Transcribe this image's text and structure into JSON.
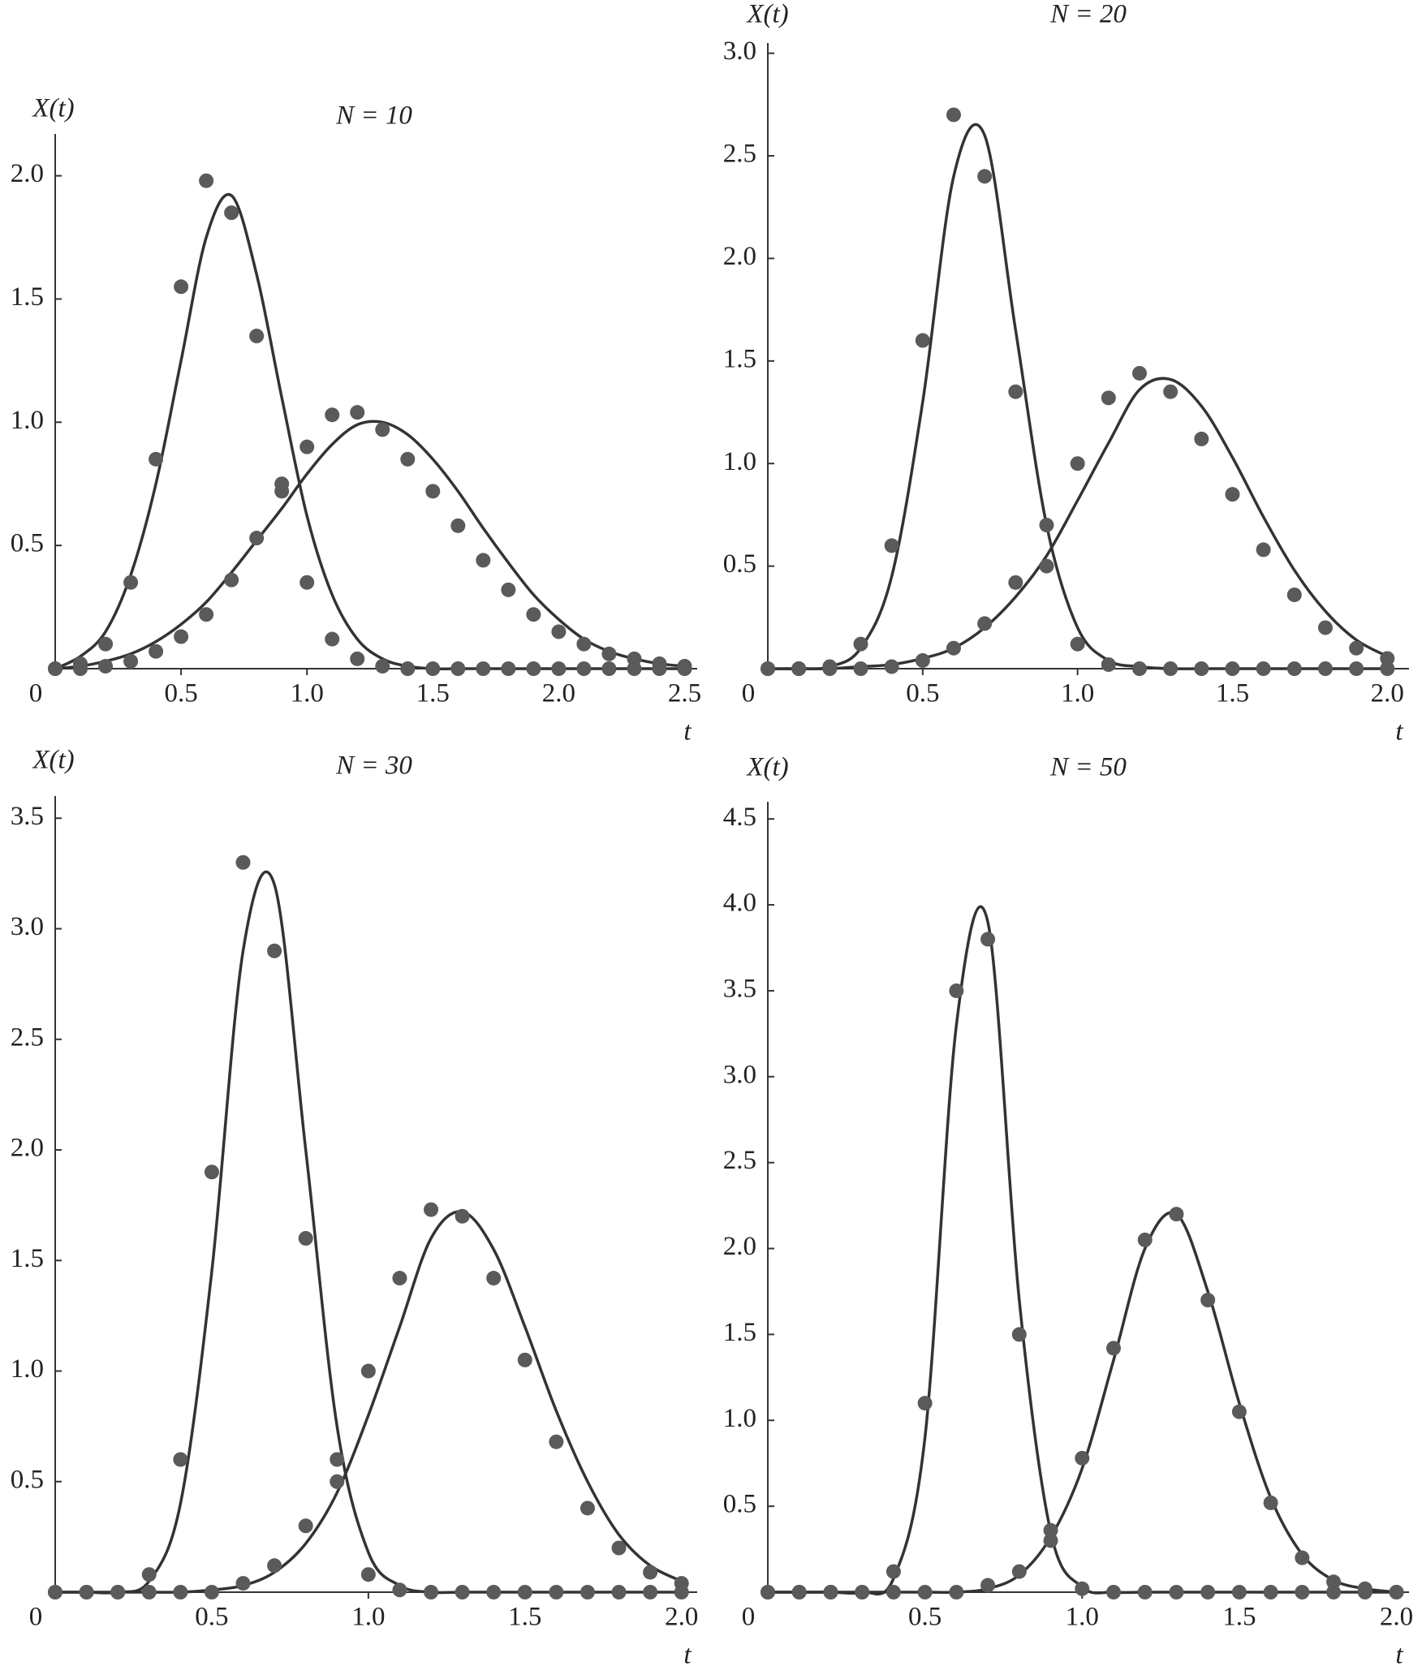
{
  "chart_data": [
    {
      "type": "line",
      "title": "N = 10",
      "xlabel": "t",
      "ylabel": "X(t)",
      "x": [
        0,
        0.1,
        0.2,
        0.3,
        0.4,
        0.5,
        0.6,
        0.7,
        0.8,
        0.9,
        1,
        1.1,
        1.2,
        1.3,
        1.4,
        1.5,
        1.6,
        1.7,
        1.8,
        1.9,
        2,
        2.1,
        2.2,
        2.3,
        2.4,
        2.5
      ],
      "xlim": [
        0,
        2.55
      ],
      "ylim": [
        0,
        2.17
      ],
      "xticks": [
        0,
        0.5,
        {
          "value": 1,
          "label": "1.0"
        },
        1.5,
        {
          "value": 2,
          "label": "2.0"
        },
        2.5
      ],
      "yticks": [
        0.5,
        {
          "value": 1,
          "label": "1.0"
        },
        1.5,
        {
          "value": 2,
          "label": "2.0"
        }
      ],
      "series": [
        {
          "mark": "line",
          "color": "#333333",
          "values": [
            0,
            0.05,
            0.15,
            0.38,
            0.75,
            1.25,
            1.75,
            1.92,
            1.6,
            1.1,
            0.62,
            0.3,
            0.12,
            0.04,
            0.01,
            0,
            0,
            0,
            0,
            0,
            0,
            0,
            0,
            0,
            0,
            0
          ]
        },
        {
          "mark": "line",
          "color": "#333333",
          "values": [
            0,
            0.01,
            0.03,
            0.06,
            0.11,
            0.18,
            0.27,
            0.39,
            0.52,
            0.65,
            0.79,
            0.91,
            0.99,
            1.0,
            0.95,
            0.85,
            0.72,
            0.57,
            0.43,
            0.3,
            0.2,
            0.12,
            0.07,
            0.04,
            0.02,
            0.01
          ]
        },
        {
          "mark": "dot",
          "color": "#5a5a5a",
          "values": [
            0,
            0.02,
            0.1,
            0.35,
            0.85,
            1.55,
            1.98,
            1.85,
            1.35,
            0.75,
            0.35,
            0.12,
            0.04,
            0.01,
            0,
            0,
            0,
            0,
            0,
            0,
            0,
            0,
            0,
            0,
            0,
            0
          ]
        },
        {
          "mark": "dot",
          "color": "#5a5a5a",
          "values": [
            0,
            0,
            0.01,
            0.03,
            0.07,
            0.13,
            0.22,
            0.36,
            0.53,
            0.72,
            0.9,
            1.03,
            1.04,
            0.97,
            0.85,
            0.72,
            0.58,
            0.44,
            0.32,
            0.22,
            0.15,
            0.1,
            0.06,
            0.04,
            0.02,
            0.01
          ]
        }
      ]
    },
    {
      "type": "line",
      "title": "N = 20",
      "xlabel": "t",
      "ylabel": "X(t)",
      "x": [
        0,
        0.1,
        0.2,
        0.3,
        0.4,
        0.5,
        0.6,
        0.7,
        0.8,
        0.9,
        1,
        1.1,
        1.2,
        1.3,
        1.4,
        1.5,
        1.6,
        1.7,
        1.8,
        1.9,
        2
      ],
      "xlim": [
        0,
        2.07
      ],
      "ylim": [
        0,
        3.05
      ],
      "xticks": [
        0,
        0.5,
        {
          "value": 1,
          "label": "1.0"
        },
        1.5,
        {
          "value": 2,
          "label": "2.0"
        }
      ],
      "yticks": [
        0.5,
        {
          "value": 1,
          "label": "1.0"
        },
        1.5,
        {
          "value": 2,
          "label": "2.0"
        },
        2.5,
        {
          "value": 3,
          "label": "3.0"
        }
      ],
      "series": [
        {
          "mark": "line",
          "color": "#333333",
          "values": [
            0,
            0,
            0.01,
            0.1,
            0.45,
            1.3,
            2.4,
            2.6,
            1.65,
            0.7,
            0.2,
            0.04,
            0.01,
            0,
            0,
            0,
            0,
            0,
            0,
            0,
            0
          ]
        },
        {
          "mark": "line",
          "color": "#333333",
          "values": [
            0,
            0,
            0,
            0.01,
            0.02,
            0.05,
            0.1,
            0.2,
            0.35,
            0.55,
            0.82,
            1.1,
            1.36,
            1.41,
            1.28,
            1.03,
            0.74,
            0.48,
            0.28,
            0.14,
            0.06
          ]
        },
        {
          "mark": "dot",
          "color": "#5a5a5a",
          "values": [
            0,
            0,
            0.01,
            0.12,
            0.6,
            1.6,
            2.7,
            2.4,
            1.35,
            0.5,
            0.12,
            0.02,
            0,
            0,
            0,
            0,
            0,
            0,
            0,
            0,
            0
          ]
        },
        {
          "mark": "dot",
          "color": "#5a5a5a",
          "values": [
            0,
            0,
            0,
            0,
            0.01,
            0.04,
            0.1,
            0.22,
            0.42,
            0.7,
            1.0,
            1.32,
            1.44,
            1.35,
            1.12,
            0.85,
            0.58,
            0.36,
            0.2,
            0.1,
            0.05
          ]
        }
      ]
    },
    {
      "type": "line",
      "title": "N = 30",
      "xlabel": "t",
      "ylabel": "X(t)",
      "x": [
        0,
        0.1,
        0.2,
        0.3,
        0.4,
        0.5,
        0.6,
        0.7,
        0.8,
        0.9,
        1,
        1.1,
        1.2,
        1.3,
        1.4,
        1.5,
        1.6,
        1.7,
        1.8,
        1.9,
        2
      ],
      "xlim": [
        0,
        2.05
      ],
      "ylim": [
        0,
        3.6
      ],
      "xticks": [
        0,
        0.5,
        {
          "value": 1,
          "label": "1.0"
        },
        1.5,
        {
          "value": 2,
          "label": "2.0"
        }
      ],
      "yticks": [
        0.5,
        {
          "value": 1,
          "label": "1.0"
        },
        1.5,
        {
          "value": 2,
          "label": "2.0"
        },
        2.5,
        {
          "value": 3,
          "label": "3.0"
        },
        3.5
      ],
      "series": [
        {
          "mark": "line",
          "color": "#333333",
          "values": [
            0,
            0,
            0,
            0.05,
            0.4,
            1.45,
            2.9,
            3.2,
            2.0,
            0.75,
            0.18,
            0.03,
            0,
            0,
            0,
            0,
            0,
            0,
            0,
            0,
            0
          ]
        },
        {
          "mark": "line",
          "color": "#333333",
          "values": [
            0,
            0,
            0,
            0,
            0,
            0.01,
            0.03,
            0.09,
            0.22,
            0.45,
            0.8,
            1.2,
            1.6,
            1.72,
            1.55,
            1.2,
            0.82,
            0.5,
            0.26,
            0.12,
            0.05
          ]
        },
        {
          "mark": "dot",
          "color": "#5a5a5a",
          "values": [
            0,
            0,
            0,
            0.08,
            0.6,
            1.9,
            3.3,
            2.9,
            1.6,
            0.5,
            0.08,
            0.01,
            0,
            0,
            0,
            0,
            0,
            0,
            0,
            0,
            0
          ]
        },
        {
          "mark": "dot",
          "color": "#5a5a5a",
          "values": [
            0,
            0,
            0,
            0,
            0,
            0,
            0.04,
            0.12,
            0.3,
            0.6,
            1.0,
            1.42,
            1.73,
            1.7,
            1.42,
            1.05,
            0.68,
            0.38,
            0.2,
            0.09,
            0.04
          ]
        }
      ]
    },
    {
      "type": "line",
      "title": "N = 50",
      "xlabel": "t",
      "ylabel": "X(t)",
      "x": [
        0,
        0.1,
        0.2,
        0.3,
        0.4,
        0.5,
        0.6,
        0.7,
        0.8,
        0.9,
        1,
        1.1,
        1.2,
        1.3,
        1.4,
        1.5,
        1.6,
        1.7,
        1.8,
        1.9,
        2
      ],
      "xlim": [
        0,
        2.04
      ],
      "ylim": [
        0,
        4.6
      ],
      "xticks": [
        0,
        0.5,
        {
          "value": 1,
          "label": "1.0"
        },
        1.5,
        {
          "value": 2,
          "label": "2.0"
        }
      ],
      "yticks": [
        0.5,
        {
          "value": 1,
          "label": "1.0"
        },
        1.5,
        {
          "value": 2,
          "label": "2.0"
        },
        2.5,
        {
          "value": 3,
          "label": "3.0"
        },
        3.5,
        {
          "value": 4,
          "label": "4.0"
        },
        4.5
      ],
      "series": [
        {
          "mark": "line",
          "color": "#333333",
          "values": [
            0,
            0,
            0,
            0,
            0.08,
            0.9,
            3.3,
            3.9,
            1.7,
            0.35,
            0.03,
            0,
            0,
            0,
            0,
            0,
            0,
            0,
            0,
            0,
            0
          ]
        },
        {
          "mark": "line",
          "color": "#333333",
          "values": [
            0,
            0,
            0,
            0,
            0,
            0,
            0,
            0.02,
            0.1,
            0.32,
            0.72,
            1.35,
            2.0,
            2.2,
            1.75,
            1.1,
            0.55,
            0.22,
            0.07,
            0.02,
            0
          ]
        },
        {
          "mark": "dot",
          "color": "#5a5a5a",
          "values": [
            0,
            0,
            0,
            0,
            0.12,
            1.1,
            3.5,
            3.8,
            1.5,
            0.3,
            0.02,
            0,
            0,
            0,
            0,
            0,
            0,
            0,
            0,
            0,
            0
          ]
        },
        {
          "mark": "dot",
          "color": "#5a5a5a",
          "values": [
            0,
            0,
            0,
            0,
            0,
            0,
            0,
            0.04,
            0.12,
            0.36,
            0.78,
            1.42,
            2.05,
            2.2,
            1.7,
            1.05,
            0.52,
            0.2,
            0.06,
            0.02,
            0
          ]
        }
      ]
    }
  ]
}
